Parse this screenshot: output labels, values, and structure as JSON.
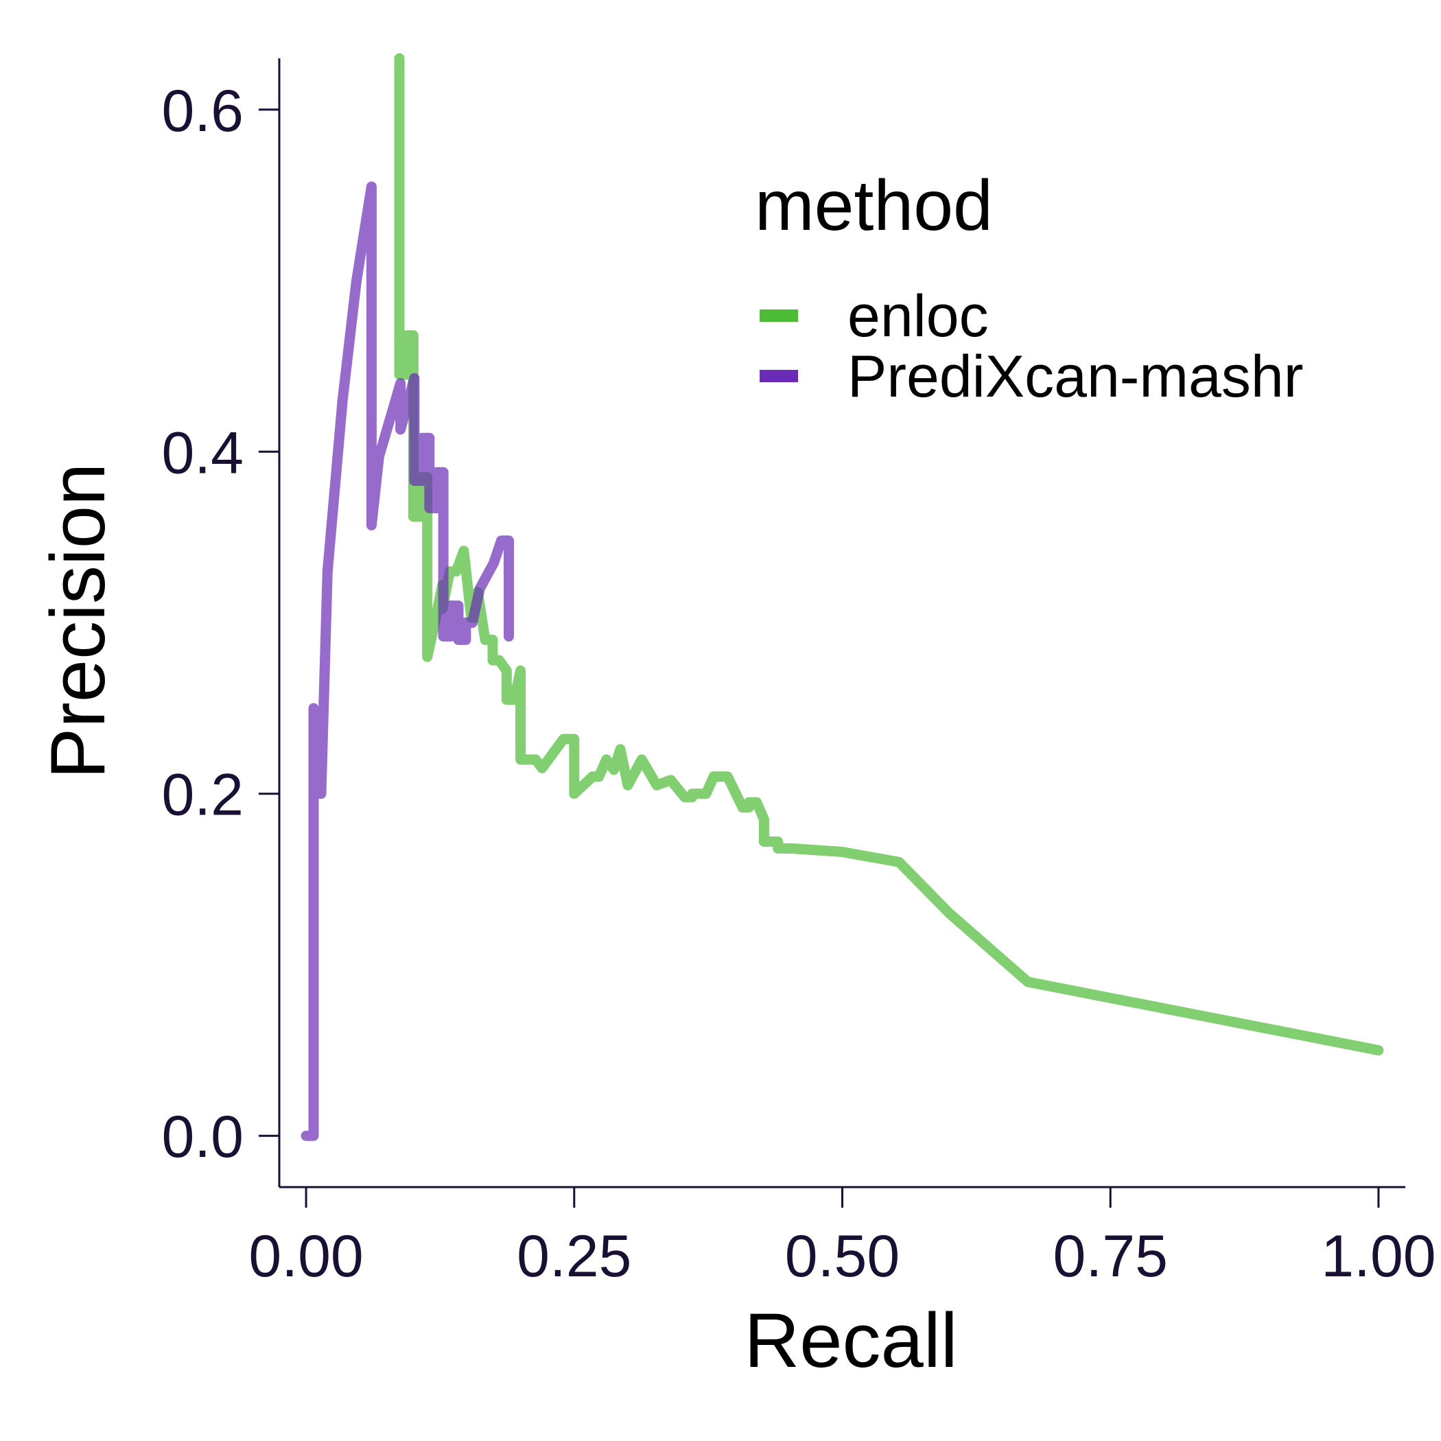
{
  "chart_data": {
    "type": "line",
    "xlabel": "Recall",
    "ylabel": "Precision",
    "xlim": [
      -0.025,
      1.025
    ],
    "ylim": [
      -0.03,
      0.63
    ],
    "x_ticks": [
      "0.00",
      "0.25",
      "0.50",
      "0.75",
      "1.00"
    ],
    "y_ticks": [
      "0.0",
      "0.2",
      "0.4",
      "0.6"
    ],
    "legend": {
      "title": "method",
      "placement": "top-right"
    },
    "series": [
      {
        "name": "enloc",
        "color": "#4cbb35",
        "x": [
          0.087,
          0.087,
          0.094,
          0.094,
          0.1,
          0.1,
          0.107,
          0.107,
          0.113,
          0.113,
          0.12,
          0.127,
          0.127,
          0.134,
          0.14,
          0.147,
          0.154,
          0.16,
          0.16,
          0.167,
          0.174,
          0.174,
          0.18,
          0.187,
          0.187,
          0.194,
          0.2,
          0.2,
          0.207,
          0.214,
          0.22,
          0.24,
          0.25,
          0.25,
          0.267,
          0.273,
          0.28,
          0.287,
          0.293,
          0.3,
          0.3,
          0.313,
          0.327,
          0.327,
          0.34,
          0.353,
          0.36,
          0.36,
          0.373,
          0.38,
          0.393,
          0.407,
          0.413,
          0.413,
          0.42,
          0.427,
          0.427,
          0.44,
          0.44,
          0.453,
          0.5,
          0.553,
          0.6,
          0.673,
          1.0
        ],
        "y": [
          0.63,
          0.445,
          0.445,
          0.468,
          0.468,
          0.362,
          0.362,
          0.385,
          0.385,
          0.28,
          0.3,
          0.322,
          0.308,
          0.33,
          0.33,
          0.342,
          0.303,
          0.303,
          0.318,
          0.29,
          0.29,
          0.278,
          0.278,
          0.272,
          0.255,
          0.255,
          0.272,
          0.22,
          0.22,
          0.22,
          0.215,
          0.232,
          0.232,
          0.2,
          0.21,
          0.21,
          0.22,
          0.214,
          0.226,
          0.205,
          0.205,
          0.22,
          0.205,
          0.205,
          0.208,
          0.198,
          0.198,
          0.2,
          0.2,
          0.21,
          0.21,
          0.192,
          0.192,
          0.195,
          0.195,
          0.185,
          0.172,
          0.172,
          0.168,
          0.168,
          0.166,
          0.16,
          0.13,
          0.09,
          0.05
        ]
      },
      {
        "name": "PrediXcan-mashr",
        "color": "#6a2cb7",
        "x": [
          0.0,
          0.007,
          0.007,
          0.014,
          0.02,
          0.034,
          0.047,
          0.061,
          0.061,
          0.068,
          0.088,
          0.088,
          0.101,
          0.101,
          0.108,
          0.108,
          0.115,
          0.115,
          0.122,
          0.122,
          0.128,
          0.128,
          0.135,
          0.135,
          0.142,
          0.142,
          0.149,
          0.149,
          0.155,
          0.162,
          0.175,
          0.182,
          0.189,
          0.189
        ],
        "y": [
          0.0,
          0.0,
          0.25,
          0.2,
          0.33,
          0.43,
          0.5,
          0.555,
          0.357,
          0.397,
          0.44,
          0.413,
          0.443,
          0.383,
          0.383,
          0.408,
          0.408,
          0.367,
          0.367,
          0.388,
          0.388,
          0.292,
          0.292,
          0.31,
          0.31,
          0.29,
          0.29,
          0.3,
          0.3,
          0.32,
          0.335,
          0.348,
          0.348,
          0.292
        ]
      }
    ]
  }
}
